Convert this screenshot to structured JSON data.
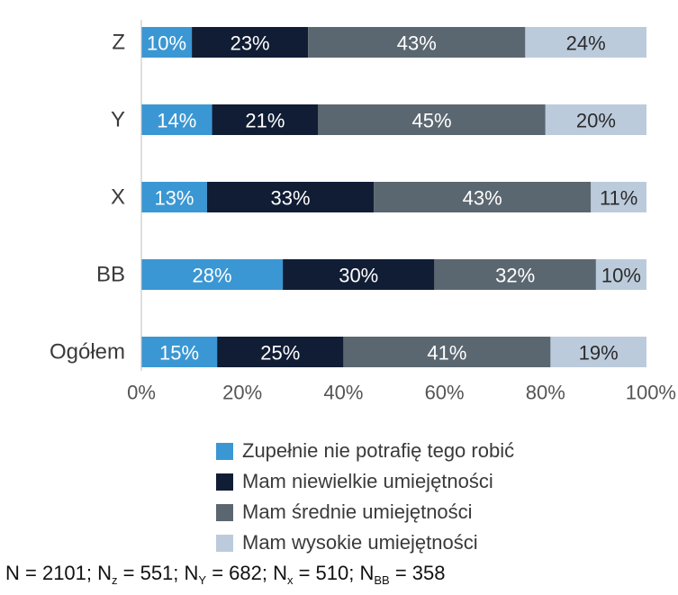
{
  "chart_data": {
    "type": "bar",
    "orientation": "horizontal",
    "stacked": true,
    "categories": [
      "Z",
      "Y",
      "X",
      "BB",
      "Ogółem"
    ],
    "series": [
      {
        "name": "Zupełnie nie potrafię tego robić",
        "color": "#3b97d3",
        "text_color": "#ffffff",
        "values": [
          10,
          14,
          13,
          28,
          15
        ]
      },
      {
        "name": "Mam niewielkie umiejętności",
        "color": "#111d35",
        "text_color": "#ffffff",
        "values": [
          23,
          21,
          33,
          30,
          25
        ]
      },
      {
        "name": "Mam średnie umiejętności",
        "color": "#5b6770",
        "text_color": "#ffffff",
        "values": [
          43,
          45,
          43,
          32,
          41
        ]
      },
      {
        "name": "Mam wysokie umiejętności",
        "color": "#bccbdc",
        "text_color": "#2b2b2b",
        "values": [
          24,
          20,
          11,
          10,
          19
        ]
      }
    ],
    "xlim": [
      0,
      100
    ],
    "xticks": [
      "0%",
      "20%",
      "40%",
      "60%",
      "80%",
      "100%"
    ],
    "xlabel": "",
    "ylabel": "",
    "title": "",
    "grid": false,
    "legend": "bottom"
  },
  "note": {
    "parts": [
      {
        "text": "N = 2101; N",
        "sub": "z"
      },
      {
        "text": " = 551; N",
        "sub": "Y"
      },
      {
        "text": " = 682; N",
        "sub": "x"
      },
      {
        "text": " = 510; N",
        "sub": "BB"
      },
      {
        "text": " = 358",
        "sub": ""
      }
    ]
  }
}
